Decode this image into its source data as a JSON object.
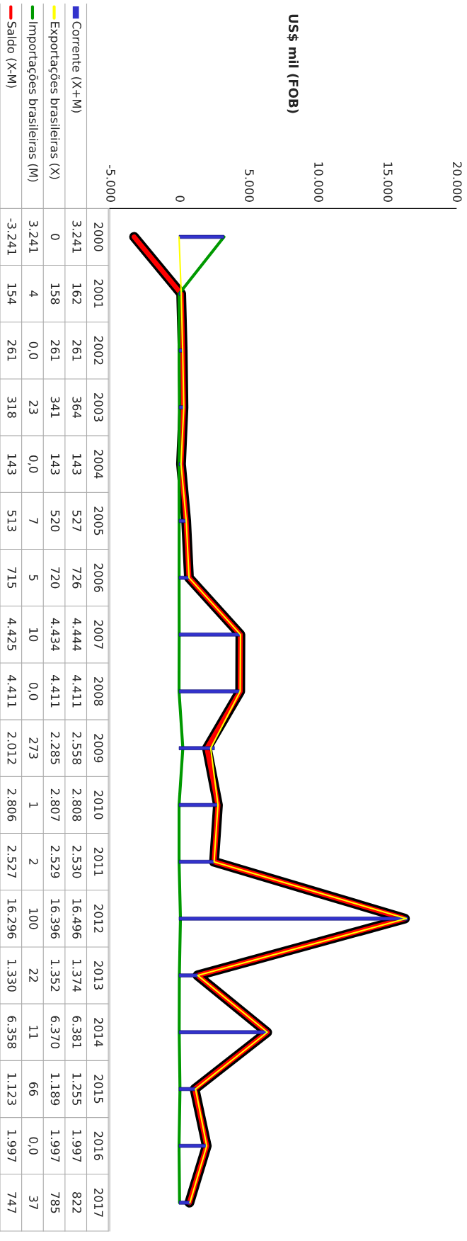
{
  "chart_data": {
    "type": "line",
    "title": "US$ mil (FOB)",
    "orientation": "horizontal",
    "categories": [
      "2000",
      "2001",
      "2002",
      "2003",
      "2004",
      "2005",
      "2006",
      "2007",
      "2008",
      "2009",
      "2010",
      "2011",
      "2012",
      "2013",
      "2014",
      "2015",
      "2016",
      "2017"
    ],
    "xlim": [
      -5000,
      20000
    ],
    "xticks": [
      {
        "value": -5000,
        "label": "-5.000"
      },
      0,
      {
        "value": 5000,
        "label": "5.000"
      },
      {
        "value": 10000,
        "label": "10.000"
      },
      {
        "value": 15000,
        "label": "15.000"
      },
      {
        "value": 20000,
        "label": "20.000"
      }
    ],
    "grid": false,
    "legend": "left",
    "series": [
      {
        "name": "Corrente (X+M)",
        "type": "bar",
        "color": "#3333cc",
        "values": [
          3241,
          162,
          261,
          364,
          143,
          527,
          726,
          4444,
          4411,
          2558,
          2808,
          2530,
          16496,
          1374,
          6381,
          1255,
          1997,
          822
        ],
        "value_labels": [
          "3.241",
          "162",
          "261",
          "364",
          "143",
          "527",
          "726",
          "4.444",
          "4.411",
          "2.558",
          "2.808",
          "2.530",
          "16.496",
          "1.374",
          "6.381",
          "1.255",
          "1.997",
          "822"
        ]
      },
      {
        "name": "Exportações brasileiras (X)",
        "color": "#ffff00",
        "values": [
          0,
          158,
          261,
          341,
          143,
          520,
          720,
          4434,
          4411,
          2285,
          2807,
          2529,
          16396,
          1352,
          6370,
          1189,
          1997,
          785
        ],
        "value_labels": [
          "0",
          "158",
          "261",
          "341",
          "143",
          "520",
          "720",
          "4.434",
          "4.411",
          "2.285",
          "2.807",
          "2.529",
          "16.396",
          "1.352",
          "6.370",
          "1.189",
          "1.997",
          "785"
        ]
      },
      {
        "name": "Importações brasileiras (M)",
        "color": "#009900",
        "values": [
          3241,
          4,
          0,
          23,
          0,
          7,
          5,
          10,
          0,
          273,
          1,
          2,
          100,
          22,
          11,
          66,
          0,
          37
        ],
        "value_labels": [
          "3.241",
          "4",
          "0,0",
          "23",
          "0,0",
          "7",
          "5",
          "10",
          "0,0",
          "273",
          "1",
          "2",
          "100",
          "22",
          "11",
          "66",
          "0,0",
          "37"
        ]
      },
      {
        "name": "Saldo (X-M)",
        "color": "#ff0000",
        "values": [
          -3241,
          154,
          261,
          318,
          143,
          513,
          715,
          4425,
          4411,
          2012,
          2806,
          2527,
          16296,
          1330,
          6358,
          1123,
          1997,
          747
        ],
        "value_labels": [
          "-3.241",
          "154",
          "261",
          "318",
          "143",
          "513",
          "715",
          "4.425",
          "4.411",
          "2.012",
          "2.806",
          "2.527",
          "16.296",
          "1.330",
          "6.358",
          "1.123",
          "1.997",
          "747"
        ]
      }
    ]
  }
}
